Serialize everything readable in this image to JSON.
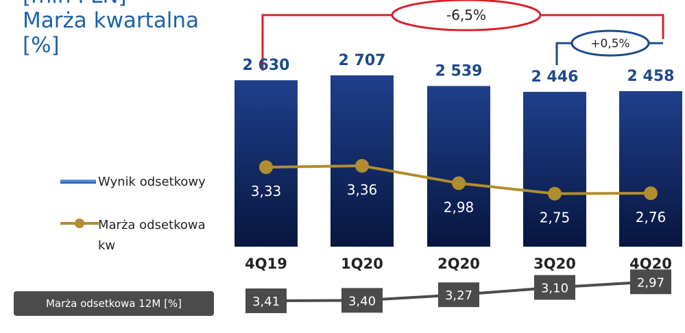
{
  "header": {
    "title": "[mln PLN]\nMarża kwartalna\n[%]"
  },
  "legend": {
    "bars": "Wynik odsetkowy",
    "line": "Marża odsetkowa\nkw"
  },
  "margin12m_label": "Marża odsetkowa 12M [%]",
  "annotations": {
    "total_change": "-6,5%",
    "qoq_change": "+0,5%"
  },
  "colors": {
    "bar_top": "#1f3f8c",
    "bar_bottom": "#07163f",
    "line": "#b08d2f",
    "title": "#1c61ab",
    "value_label": "#1c4a8c",
    "annot_red": "#d6202a",
    "annot_blue": "#1c4a8c",
    "grey_line": "#4b4b4b"
  },
  "chart_data": [
    {
      "type": "bar",
      "categories": [
        "4Q19",
        "1Q20",
        "2Q20",
        "3Q20",
        "4Q20"
      ],
      "series": [
        {
          "name": "Wynik odsetkowy",
          "values": [
            2630,
            2707,
            2539,
            2446,
            2458
          ],
          "labels": [
            "2 630",
            "2 707",
            "2 539",
            "2 446",
            "2 458"
          ]
        }
      ],
      "ylim": [
        0,
        2800
      ]
    },
    {
      "type": "line",
      "categories": [
        "4Q19",
        "1Q20",
        "2Q20",
        "3Q20",
        "4Q20"
      ],
      "series": [
        {
          "name": "Marża odsetkowa kw",
          "values": [
            3.33,
            3.36,
            2.98,
            2.75,
            2.76
          ],
          "labels": [
            "3,33",
            "3,36",
            "2,98",
            "2,75",
            "2,76"
          ]
        }
      ]
    },
    {
      "type": "line",
      "categories": [
        "4Q19",
        "1Q20",
        "2Q20",
        "3Q20",
        "4Q20"
      ],
      "series": [
        {
          "name": "Marża odsetkowa 12M [%]",
          "values": [
            3.41,
            3.4,
            3.27,
            3.1,
            2.97
          ],
          "labels": [
            "3,41",
            "3,40",
            "3,27",
            "3,10",
            "2,97"
          ]
        }
      ]
    }
  ]
}
